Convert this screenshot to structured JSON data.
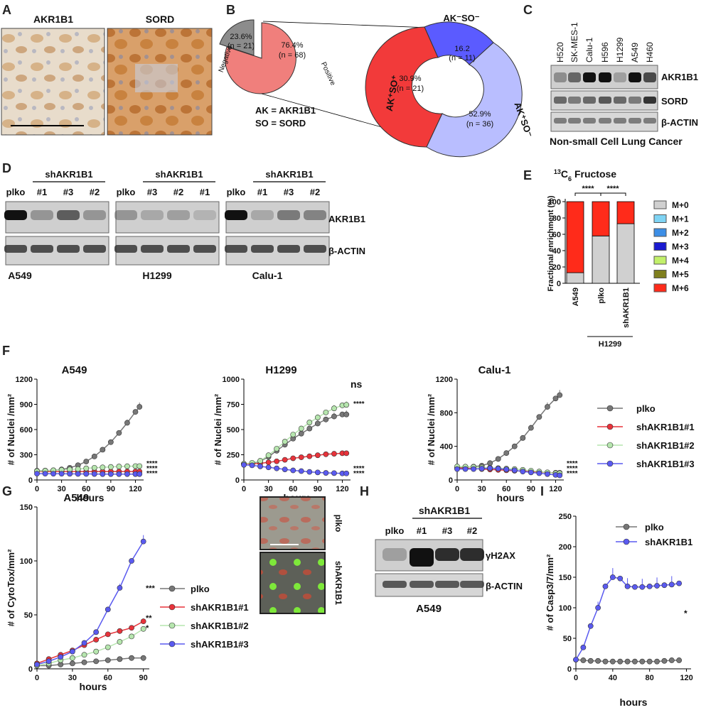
{
  "panels": {
    "A": "A",
    "B": "B",
    "C": "C",
    "D": "D",
    "E": "E",
    "F": "F",
    "G": "G",
    "H": "H",
    "I": "I"
  },
  "panelA": {
    "left_title": "AKR1B1",
    "right_title": "SORD"
  },
  "panelB": {
    "pie_negative_pct": "23.6%",
    "pie_negative_n": "(n = 21)",
    "pie_negative_label": "Negative",
    "pie_positive_pct": "76.4%",
    "pie_positive_n": "(n = 68)",
    "pie_positive_label": "Positive",
    "legend_ak": "AK = AKR1B1",
    "legend_so": "SO = SORD",
    "donut_top_pct": "16.2",
    "donut_top_n": "(n = 11)",
    "donut_top_label": "AK⁻SO⁻",
    "donut_left_pct": "30.9%",
    "donut_left_n": "(n = 21)",
    "donut_left_label": "AK⁺SO⁺",
    "donut_right_pct": "52.9%",
    "donut_right_n": "(n = 36)",
    "donut_right_label": "AK⁺SO⁻"
  },
  "panelC": {
    "lanes": [
      "H520",
      "SK-MES-1",
      "Calu-1",
      "H596",
      "H1299",
      "A549",
      "H460"
    ],
    "rows": [
      "AKR1B1",
      "SORD",
      "β-ACTIN"
    ],
    "caption": "Non-small Cell Lung Cancer"
  },
  "panelD": {
    "sh_label": "shAKR1B1",
    "groups": [
      {
        "cell": "A549",
        "lanes": [
          "plko",
          "#1",
          "#3",
          "#2"
        ]
      },
      {
        "cell": "H1299",
        "lanes": [
          "plko",
          "#3",
          "#2",
          "#1"
        ]
      },
      {
        "cell": "Calu-1",
        "lanes": [
          "plko",
          "#1",
          "#3",
          "#2"
        ]
      }
    ],
    "rows": [
      "AKR1B1",
      "β-ACTIN"
    ]
  },
  "panelE": {
    "title_sup": "13",
    "title_main": "C",
    "title_sub": "6",
    "title_rest": " Fructose",
    "ylabel": "Fractional enrichment (%)",
    "yticks": [
      "0",
      "20",
      "40",
      "60",
      "80",
      "100"
    ],
    "bars": [
      "A549",
      "plko",
      "shAKR1B1"
    ],
    "bracket_label": "H1299",
    "sig1": "****",
    "sig2": "****",
    "legend": [
      "M+0",
      "M+1",
      "M+2",
      "M+3",
      "M+4",
      "M+5",
      "M+6"
    ],
    "colors": [
      "#d0d0d0",
      "#7fd4f4",
      "#3c8ee6",
      "#1a1ad0",
      "#c2f06a",
      "#7f7f1e",
      "#ff2b1a"
    ]
  },
  "panelF": {
    "ylabel": "# of Nuclei /mm²",
    "xlabel": "hours",
    "charts": [
      {
        "title": "A549",
        "yticks": [
          "0",
          "300",
          "600",
          "900",
          "1200"
        ],
        "xticks": [
          "0",
          "30",
          "60",
          "90",
          "120"
        ]
      },
      {
        "title": "H1299",
        "yticks": [
          "0",
          "250",
          "500",
          "750",
          "1000"
        ],
        "xticks": [
          "0",
          "30",
          "60",
          "90",
          "120"
        ],
        "ns": "ns"
      },
      {
        "title": "Calu-1",
        "yticks": [
          "0",
          "400",
          "800",
          "1200"
        ],
        "xticks": [
          "0",
          "30",
          "60",
          "90",
          "120"
        ]
      }
    ],
    "legend": [
      "plko",
      "shAKR1B1#1",
      "shAKR1B1#2",
      "shAKR1B1#3"
    ],
    "stars": "****"
  },
  "panelG": {
    "title": "A549",
    "ylabel": "# of CytoTox/mm²",
    "xlabel": "hours",
    "yticks": [
      "0",
      "50",
      "100",
      "150"
    ],
    "xticks": [
      "0",
      "30",
      "60",
      "90"
    ],
    "legend": [
      "plko",
      "shAKR1B1#1",
      "shAKR1B1#2",
      "shAKR1B1#3"
    ],
    "sig_blue": "***",
    "sig_red": "**",
    "sig_green": "*",
    "img_top_label": "plko",
    "img_bottom_label": "shAKR1B1"
  },
  "panelH": {
    "sh_label": "shAKR1B1",
    "lanes": [
      "plko",
      "#1",
      "#3",
      "#2"
    ],
    "rows": [
      "γH2AX",
      "β-ACTIN"
    ],
    "caption": "A549"
  },
  "panelI": {
    "ylabel": "# of Casp3/7/mm²",
    "xlabel": "hours",
    "yticks": [
      "0",
      "50",
      "100",
      "150",
      "200",
      "250"
    ],
    "xticks": [
      "0",
      "40",
      "80",
      "120"
    ],
    "legend": [
      "plko",
      "shAKR1B1"
    ],
    "sig": "*"
  },
  "chart_data": [
    {
      "type": "bar",
      "title": "13C6 Fructose",
      "ylabel": "Fractional enrichment (%)",
      "ylim": [
        0,
        100
      ],
      "categories": [
        "A549",
        "plko",
        "shAKR1B1"
      ],
      "series": [
        {
          "name": "M+0",
          "values": [
            13,
            58,
            73
          ]
        },
        {
          "name": "M+1",
          "values": [
            0,
            0,
            0
          ]
        },
        {
          "name": "M+2",
          "values": [
            0,
            0,
            0
          ]
        },
        {
          "name": "M+3",
          "values": [
            0,
            0,
            0
          ]
        },
        {
          "name": "M+4",
          "values": [
            0,
            0,
            0
          ]
        },
        {
          "name": "M+5",
          "values": [
            0,
            0,
            0
          ]
        },
        {
          "name": "M+6",
          "values": [
            87,
            42,
            27
          ]
        }
      ]
    },
    {
      "type": "line",
      "title": "A549",
      "xlabel": "hours",
      "ylabel": "# of Nuclei /mm²",
      "xlim": [
        0,
        130
      ],
      "ylim": [
        0,
        1200
      ],
      "x": [
        0,
        10,
        20,
        30,
        40,
        50,
        60,
        70,
        80,
        90,
        100,
        110,
        120,
        125
      ],
      "series": [
        {
          "name": "plko",
          "values": [
            110,
            112,
            115,
            125,
            145,
            175,
            220,
            280,
            360,
            450,
            560,
            680,
            810,
            870
          ]
        },
        {
          "name": "shAKR1B1#1",
          "values": [
            100,
            100,
            100,
            100,
            100,
            100,
            100,
            100,
            100,
            100,
            100,
            100,
            100,
            100
          ]
        },
        {
          "name": "shAKR1B1#2",
          "values": [
            105,
            110,
            115,
            120,
            125,
            130,
            138,
            145,
            150,
            155,
            160,
            163,
            165,
            165
          ]
        },
        {
          "name": "shAKR1B1#3",
          "values": [
            75,
            75,
            74,
            74,
            73,
            72,
            72,
            71,
            70,
            70,
            70,
            70,
            70,
            70
          ]
        }
      ]
    },
    {
      "type": "line",
      "title": "H1299",
      "xlabel": "hours",
      "ylabel": "# of Nuclei /mm²",
      "xlim": [
        0,
        130
      ],
      "ylim": [
        0,
        1000
      ],
      "x": [
        0,
        10,
        20,
        30,
        40,
        50,
        60,
        70,
        80,
        90,
        100,
        110,
        120,
        125
      ],
      "series": [
        {
          "name": "plko",
          "values": [
            160,
            165,
            185,
            230,
            290,
            350,
            410,
            460,
            510,
            560,
            600,
            630,
            650,
            650
          ]
        },
        {
          "name": "shAKR1B1#1",
          "values": [
            160,
            160,
            165,
            175,
            185,
            200,
            215,
            225,
            235,
            245,
            255,
            260,
            265,
            265
          ]
        },
        {
          "name": "shAKR1B1#2",
          "values": [
            160,
            170,
            190,
            245,
            310,
            380,
            450,
            510,
            570,
            620,
            670,
            710,
            740,
            745
          ]
        },
        {
          "name": "shAKR1B1#3",
          "values": [
            150,
            145,
            135,
            125,
            115,
            105,
            95,
            88,
            80,
            75,
            70,
            68,
            65,
            65
          ]
        }
      ]
    },
    {
      "type": "line",
      "title": "Calu-1",
      "xlabel": "hours",
      "ylabel": "# of Nuclei /mm²",
      "xlim": [
        0,
        130
      ],
      "ylim": [
        0,
        1200
      ],
      "x": [
        0,
        10,
        20,
        30,
        40,
        50,
        60,
        70,
        80,
        90,
        100,
        110,
        120,
        125
      ],
      "series": [
        {
          "name": "plko",
          "values": [
            150,
            152,
            158,
            170,
            200,
            250,
            320,
            400,
            500,
            620,
            750,
            870,
            970,
            1010
          ]
        },
        {
          "name": "shAKR1B1#1",
          "values": [
            140,
            138,
            135,
            130,
            125,
            120,
            115,
            110,
            105,
            100,
            95,
            90,
            85,
            85
          ]
        },
        {
          "name": "shAKR1B1#2",
          "values": [
            160,
            158,
            155,
            150,
            145,
            140,
            135,
            130,
            120,
            110,
            100,
            90,
            80,
            80
          ]
        },
        {
          "name": "shAKR1B1#3",
          "values": [
            130,
            130,
            130,
            135,
            140,
            135,
            125,
            115,
            100,
            90,
            80,
            70,
            60,
            55
          ]
        }
      ]
    },
    {
      "type": "line",
      "title": "A549",
      "xlabel": "hours",
      "ylabel": "# of CytoTox/mm²",
      "xlim": [
        0,
        95
      ],
      "ylim": [
        0,
        150
      ],
      "x": [
        0,
        10,
        20,
        30,
        40,
        50,
        60,
        70,
        80,
        90
      ],
      "series": [
        {
          "name": "plko",
          "values": [
            3,
            3,
            4,
            5,
            6,
            7,
            8,
            9,
            10,
            10
          ]
        },
        {
          "name": "shAKR1B1#1",
          "values": [
            5,
            9,
            13,
            17,
            22,
            27,
            32,
            35,
            38,
            44
          ]
        },
        {
          "name": "shAKR1B1#2",
          "values": [
            3,
            5,
            8,
            10,
            13,
            16,
            20,
            25,
            30,
            37
          ]
        },
        {
          "name": "shAKR1B1#3",
          "values": [
            4,
            7,
            11,
            16,
            24,
            34,
            55,
            75,
            100,
            118
          ]
        }
      ]
    },
    {
      "type": "line",
      "xlabel": "hours",
      "ylabel": "# of Casp3/7/mm²",
      "xlim": [
        0,
        125
      ],
      "ylim": [
        0,
        250
      ],
      "x": [
        0,
        8,
        16,
        24,
        32,
        40,
        48,
        56,
        64,
        72,
        80,
        88,
        96,
        104,
        112
      ],
      "series": [
        {
          "name": "plko",
          "values": [
            15,
            14,
            13,
            13,
            12,
            12,
            12,
            12,
            12,
            12,
            12,
            12,
            13,
            14,
            14
          ]
        },
        {
          "name": "shAKR1B1",
          "values": [
            15,
            35,
            70,
            100,
            135,
            150,
            148,
            135,
            134,
            134,
            135,
            136,
            137,
            138,
            140
          ]
        }
      ]
    }
  ]
}
